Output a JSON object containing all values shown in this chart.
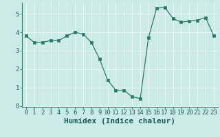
{
  "x": [
    0,
    1,
    2,
    3,
    4,
    5,
    6,
    7,
    8,
    9,
    10,
    11,
    12,
    13,
    14,
    15,
    16,
    17,
    18,
    19,
    20,
    21,
    22,
    23
  ],
  "y": [
    3.8,
    3.45,
    3.45,
    3.55,
    3.55,
    3.8,
    4.0,
    3.9,
    3.45,
    2.55,
    1.4,
    0.85,
    0.85,
    0.5,
    0.4,
    3.7,
    5.3,
    5.35,
    4.75,
    4.55,
    4.6,
    4.65,
    4.8,
    3.8
  ],
  "title": "",
  "xlabel": "Humidex (Indice chaleur)",
  "ylabel": "",
  "xlim": [
    -0.5,
    23.5
  ],
  "ylim": [
    -0.05,
    5.6
  ],
  "yticks": [
    0,
    1,
    2,
    3,
    4,
    5
  ],
  "xticks": [
    0,
    1,
    2,
    3,
    4,
    5,
    6,
    7,
    8,
    9,
    10,
    11,
    12,
    13,
    14,
    15,
    16,
    17,
    18,
    19,
    20,
    21,
    22,
    23
  ],
  "line_color": "#2a7a68",
  "marker": "s",
  "marker_size": 2.2,
  "bg_color": "#cceae8",
  "grid_color": "#e8f8f7",
  "tick_label_fontsize": 6.5,
  "xlabel_fontsize": 8.0
}
